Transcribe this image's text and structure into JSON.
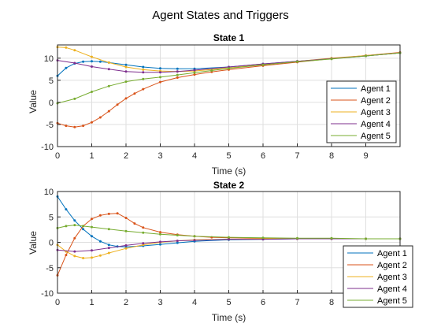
{
  "chart_data": {
    "suptitle": "Agent States and Triggers",
    "type": "line",
    "colors": [
      "#0072BD",
      "#D95319",
      "#EDB120",
      "#7E2F8E",
      "#77AC30"
    ],
    "subplots": [
      {
        "title": "State 1",
        "xlabel": "Time (s)",
        "ylabel": "Value",
        "xlim": [
          0,
          10
        ],
        "ylim": [
          -10,
          13
        ],
        "xticks": [
          "0",
          "1",
          "2",
          "3",
          "4",
          "5",
          "6",
          "7",
          "8",
          "9"
        ],
        "yticks": [
          "-10",
          "-5",
          "0",
          "5",
          "10"
        ],
        "grid": true,
        "legend_position": "lower-right",
        "markers": "triggers",
        "series": [
          {
            "name": "Agent 1",
            "x": [
              0,
              0.25,
              0.5,
              0.75,
              1,
              1.25,
              1.5,
              2,
              2.5,
              3,
              3.5,
              4,
              5,
              6,
              7,
              8,
              9,
              10
            ],
            "y": [
              6,
              7.8,
              8.8,
              9.2,
              9.3,
              9.2,
              9.0,
              8.5,
              8.0,
              7.7,
              7.6,
              7.6,
              8.0,
              8.7,
              9.3,
              9.9,
              10.5,
              11.2
            ]
          },
          {
            "name": "Agent 2",
            "x": [
              0,
              0.25,
              0.5,
              0.75,
              1,
              1.25,
              1.5,
              1.75,
              2,
              2.25,
              2.5,
              3,
              3.5,
              4,
              4.5,
              5,
              6,
              7,
              8,
              9,
              10
            ],
            "y": [
              -4.7,
              -5.3,
              -5.6,
              -5.3,
              -4.5,
              -3.4,
              -2.0,
              -0.5,
              0.9,
              2.0,
              3.0,
              4.6,
              5.6,
              6.3,
              6.9,
              7.4,
              8.3,
              9.1,
              9.9,
              10.6,
              11.3
            ]
          },
          {
            "name": "Agent 3",
            "x": [
              0,
              0.25,
              0.5,
              1,
              1.5,
              2,
              2.5,
              3,
              3.5,
              4,
              5,
              6,
              7,
              8,
              9,
              10
            ],
            "y": [
              12.5,
              12.4,
              11.8,
              10.3,
              9.0,
              8.0,
              7.4,
              7.1,
              7.0,
              7.1,
              7.8,
              8.6,
              9.3,
              10.0,
              10.6,
              11.2
            ]
          },
          {
            "name": "Agent 4",
            "x": [
              0,
              0.5,
              1,
              1.5,
              2,
              2.5,
              3,
              3.5,
              4,
              5,
              6,
              7,
              8,
              9,
              10
            ],
            "y": [
              9.5,
              8.9,
              8.1,
              7.5,
              7.0,
              6.8,
              6.8,
              7.0,
              7.3,
              8.0,
              8.7,
              9.3,
              9.9,
              10.5,
              11.2
            ]
          },
          {
            "name": "Agent 5",
            "x": [
              0,
              0.5,
              1,
              1.5,
              2,
              2.5,
              3,
              3.5,
              4,
              4.5,
              5,
              6,
              7,
              8,
              9,
              10
            ],
            "y": [
              -0.2,
              0.8,
              2.4,
              3.7,
              4.7,
              5.3,
              5.7,
              6.2,
              6.7,
              7.2,
              7.7,
              8.5,
              9.2,
              9.8,
              10.5,
              11.2
            ]
          }
        ]
      },
      {
        "title": "State 2",
        "xlabel": "Time (s)",
        "ylabel": "Value",
        "xlim": [
          0,
          10
        ],
        "ylim": [
          -10,
          10
        ],
        "xticks": [
          "0",
          "1",
          "2",
          "3",
          "4",
          "5",
          "6",
          "7",
          "8",
          "9"
        ],
        "yticks": [
          "-10",
          "-5",
          "0",
          "5",
          "10"
        ],
        "grid": true,
        "legend_position": "lower-right",
        "markers": "triggers",
        "series": [
          {
            "name": "Agent 1",
            "x": [
              0,
              0.25,
              0.5,
              0.75,
              1,
              1.25,
              1.5,
              1.75,
              2,
              2.5,
              3,
              3.5,
              4,
              5,
              6,
              7,
              8,
              9,
              10
            ],
            "y": [
              9,
              6.5,
              4.3,
              2.6,
              1.2,
              0.2,
              -0.5,
              -0.8,
              -0.9,
              -0.7,
              -0.4,
              -0.1,
              0.2,
              0.5,
              0.6,
              0.7,
              0.7,
              0.7,
              0.7
            ]
          },
          {
            "name": "Agent 2",
            "x": [
              0,
              0.25,
              0.5,
              0.75,
              1,
              1.25,
              1.5,
              1.75,
              2,
              2.25,
              2.5,
              3,
              3.5,
              4,
              4.5,
              5,
              6,
              7,
              8,
              9,
              10
            ],
            "y": [
              -6.5,
              -2.5,
              0.8,
              3.2,
              4.6,
              5.3,
              5.6,
              5.7,
              4.8,
              3.7,
              2.9,
              2.0,
              1.5,
              1.2,
              1.0,
              0.9,
              0.8,
              0.7,
              0.7,
              0.7,
              0.7
            ]
          },
          {
            "name": "Agent 3",
            "x": [
              0,
              0.25,
              0.5,
              0.75,
              1,
              1.25,
              1.5,
              2,
              2.5,
              3,
              3.5,
              4,
              5,
              6,
              7,
              8,
              9,
              10
            ],
            "y": [
              -0.5,
              -1.8,
              -2.7,
              -3.1,
              -3.0,
              -2.6,
              -2.1,
              -1.2,
              -0.5,
              0.0,
              0.3,
              0.5,
              0.6,
              0.7,
              0.7,
              0.7,
              0.7,
              0.7
            ]
          },
          {
            "name": "Agent 4",
            "x": [
              0,
              0.5,
              1,
              1.5,
              2,
              2.5,
              3,
              3.5,
              4,
              5,
              6,
              7,
              8,
              9,
              10
            ],
            "y": [
              -1.5,
              -1.8,
              -1.6,
              -1.1,
              -0.6,
              -0.2,
              0.1,
              0.3,
              0.4,
              0.6,
              0.6,
              0.7,
              0.7,
              0.7,
              0.7
            ]
          },
          {
            "name": "Agent 5",
            "x": [
              0,
              0.25,
              0.5,
              0.75,
              1,
              1.5,
              2,
              2.5,
              3,
              3.5,
              4,
              5,
              6,
              7,
              8,
              9,
              10
            ],
            "y": [
              2.8,
              3.2,
              3.4,
              3.2,
              3.0,
              2.6,
              2.2,
              1.9,
              1.6,
              1.4,
              1.2,
              1.0,
              0.9,
              0.8,
              0.8,
              0.7,
              0.7
            ]
          }
        ]
      }
    ]
  }
}
